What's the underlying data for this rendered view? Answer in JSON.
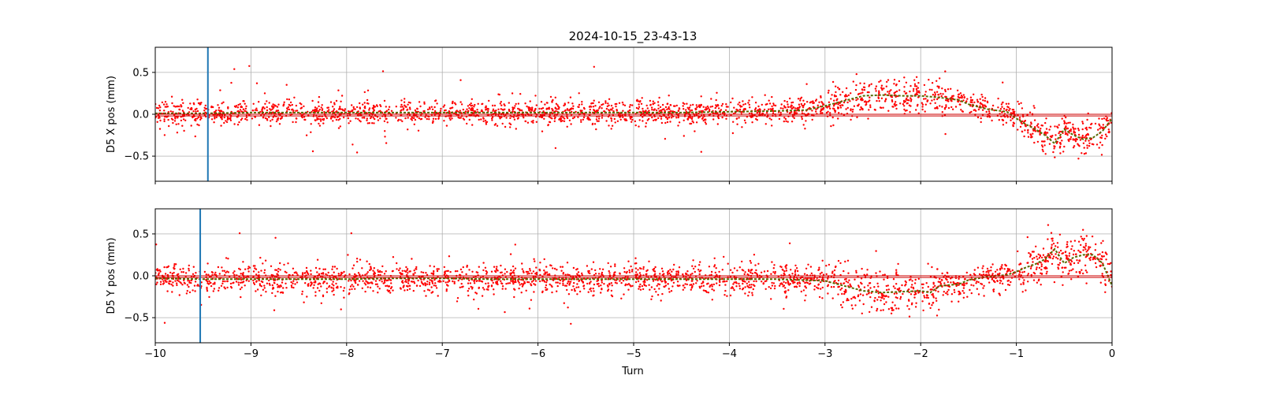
{
  "chart_data": {
    "type": "scatter",
    "title": "2024-10-15_23-43-13",
    "xlabel": "Turn",
    "xlim": [
      -10,
      0
    ],
    "x_ticks": [
      -10,
      -9,
      -8,
      -7,
      -6,
      -5,
      -4,
      -3,
      -2,
      -1,
      0
    ],
    "x_tick_labels": [
      "−10",
      "−9",
      "−8",
      "−7",
      "−6",
      "−5",
      "−4",
      "−3",
      "−2",
      "−1",
      "0"
    ],
    "grid": true,
    "colors": {
      "points": "#ff0000",
      "trend": "#556b00",
      "marker": "#1f77b4",
      "refline": "#cc0000",
      "grid": "#b0b0b0"
    },
    "panels": [
      {
        "ylabel": "D5 X pos (mm)",
        "ylim": [
          -0.8,
          0.8
        ],
        "y_ticks": [
          0.5,
          0.0,
          -0.5
        ],
        "y_tick_labels": [
          "0.5",
          "0.0",
          "−0.5"
        ],
        "vertical_marker_x": -9.45,
        "reference_lines_y": [
          0.0,
          -0.02
        ],
        "mean_trend": [
          {
            "x": -10.0,
            "y": 0.01
          },
          {
            "x": -9.5,
            "y": 0.01
          },
          {
            "x": -9.0,
            "y": 0.02
          },
          {
            "x": -8.5,
            "y": 0.02
          },
          {
            "x": -8.0,
            "y": 0.02
          },
          {
            "x": -7.5,
            "y": 0.02
          },
          {
            "x": -7.0,
            "y": 0.02
          },
          {
            "x": -6.5,
            "y": 0.02
          },
          {
            "x": -6.0,
            "y": 0.02
          },
          {
            "x": -5.5,
            "y": 0.02
          },
          {
            "x": -5.0,
            "y": 0.02
          },
          {
            "x": -4.5,
            "y": 0.02
          },
          {
            "x": -4.0,
            "y": 0.03
          },
          {
            "x": -3.5,
            "y": 0.04
          },
          {
            "x": -3.2,
            "y": 0.05
          },
          {
            "x": -3.0,
            "y": 0.1
          },
          {
            "x": -2.8,
            "y": 0.16
          },
          {
            "x": -2.6,
            "y": 0.22
          },
          {
            "x": -2.4,
            "y": 0.23
          },
          {
            "x": -2.2,
            "y": 0.22
          },
          {
            "x": -2.0,
            "y": 0.22
          },
          {
            "x": -1.8,
            "y": 0.2
          },
          {
            "x": -1.6,
            "y": 0.17
          },
          {
            "x": -1.5,
            "y": 0.12
          },
          {
            "x": -1.3,
            "y": 0.06
          },
          {
            "x": -1.1,
            "y": 0.03
          },
          {
            "x": -1.0,
            "y": -0.05
          },
          {
            "x": -0.9,
            "y": -0.12
          },
          {
            "x": -0.8,
            "y": -0.18
          },
          {
            "x": -0.7,
            "y": -0.25
          },
          {
            "x": -0.6,
            "y": -0.35
          },
          {
            "x": -0.5,
            "y": -0.18
          },
          {
            "x": -0.4,
            "y": -0.25
          },
          {
            "x": -0.3,
            "y": -0.3
          },
          {
            "x": -0.2,
            "y": -0.28
          },
          {
            "x": -0.1,
            "y": -0.2
          },
          {
            "x": 0.0,
            "y": -0.05
          }
        ],
        "spread": 0.07
      },
      {
        "ylabel": "D5 Y pos (mm)",
        "ylim": [
          -0.8,
          0.8
        ],
        "y_ticks": [
          0.5,
          0.0,
          -0.5
        ],
        "y_tick_labels": [
          "0.5",
          "0.0",
          "−0.5"
        ],
        "vertical_marker_x": -9.53,
        "reference_lines_y": [
          0.0,
          -0.02
        ],
        "mean_trend": [
          {
            "x": -10.0,
            "y": -0.03
          },
          {
            "x": -9.5,
            "y": -0.04
          },
          {
            "x": -9.0,
            "y": -0.04
          },
          {
            "x": -8.5,
            "y": -0.04
          },
          {
            "x": -8.0,
            "y": -0.04
          },
          {
            "x": -7.5,
            "y": -0.03
          },
          {
            "x": -7.0,
            "y": -0.03
          },
          {
            "x": -6.5,
            "y": -0.04
          },
          {
            "x": -6.0,
            "y": -0.04
          },
          {
            "x": -5.5,
            "y": -0.04
          },
          {
            "x": -5.0,
            "y": -0.04
          },
          {
            "x": -4.5,
            "y": -0.04
          },
          {
            "x": -4.0,
            "y": -0.04
          },
          {
            "x": -3.5,
            "y": -0.04
          },
          {
            "x": -3.0,
            "y": -0.06
          },
          {
            "x": -2.8,
            "y": -0.12
          },
          {
            "x": -2.6,
            "y": -0.18
          },
          {
            "x": -2.4,
            "y": -0.2
          },
          {
            "x": -2.2,
            "y": -0.19
          },
          {
            "x": -2.0,
            "y": -0.18
          },
          {
            "x": -1.9,
            "y": -0.2
          },
          {
            "x": -1.8,
            "y": -0.12
          },
          {
            "x": -1.6,
            "y": -0.1
          },
          {
            "x": -1.5,
            "y": -0.05
          },
          {
            "x": -1.3,
            "y": -0.01
          },
          {
            "x": -1.1,
            "y": 0.01
          },
          {
            "x": -1.0,
            "y": 0.05
          },
          {
            "x": -0.9,
            "y": 0.1
          },
          {
            "x": -0.8,
            "y": 0.14
          },
          {
            "x": -0.7,
            "y": 0.2
          },
          {
            "x": -0.6,
            "y": 0.32
          },
          {
            "x": -0.5,
            "y": 0.15
          },
          {
            "x": -0.4,
            "y": 0.22
          },
          {
            "x": -0.3,
            "y": 0.25
          },
          {
            "x": -0.2,
            "y": 0.25
          },
          {
            "x": -0.1,
            "y": 0.15
          },
          {
            "x": 0.0,
            "y": -0.12
          }
        ],
        "spread": 0.09
      }
    ],
    "sample_gaps_x": [
      -9.5,
      -9.0,
      -8.5,
      -8.0,
      -7.5,
      -7.0,
      -6.5,
      -6.0,
      -5.5,
      -5.0,
      -4.5,
      -4.0,
      -3.5,
      -3.0,
      -2.5,
      -2.0,
      -1.5,
      -1.0
    ],
    "points_per_panel": 2600
  }
}
